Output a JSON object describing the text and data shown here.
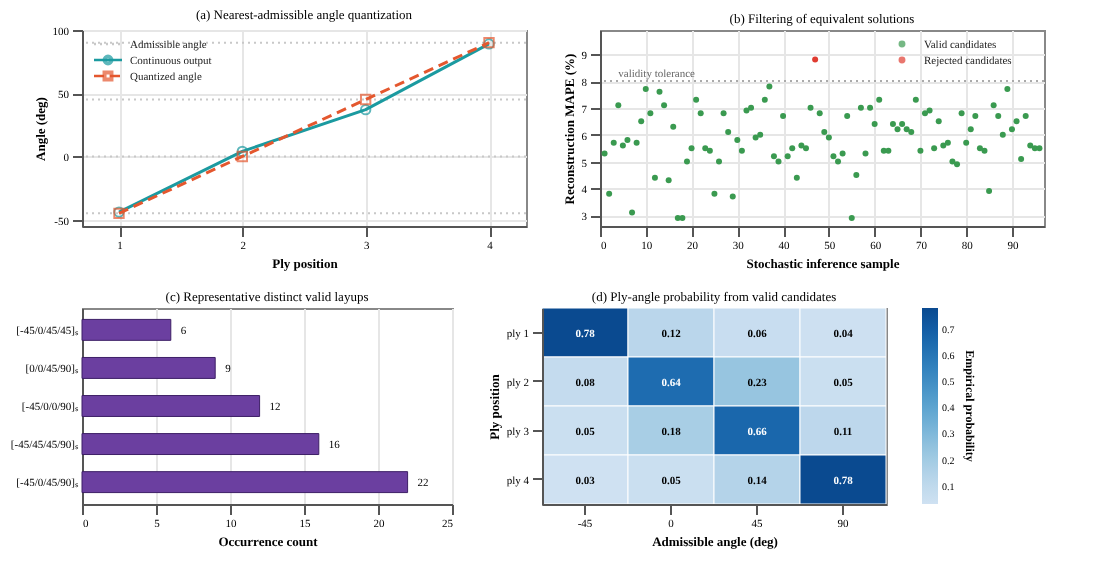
{
  "chart_data": [
    {
      "type": "line",
      "title": "(a) Nearest-admissible angle quantization",
      "xlabel": "Ply position",
      "ylabel": "Angle (deg)",
      "x": [
        1,
        2,
        3,
        4
      ],
      "xlim": [
        0.7,
        4.3
      ],
      "xticks": [
        1,
        2,
        3,
        4
      ],
      "ylim": [
        -55,
        100
      ],
      "yticks": [
        -50,
        0,
        50,
        100
      ],
      "grid": true,
      "legend": "top left",
      "ref_lines": [
        {
          "axis": "y",
          "value": -45,
          "label": "Admissible angle",
          "color": "#c8c8c8",
          "line_style": "dotted"
        },
        {
          "axis": "y",
          "value": 0,
          "label": null,
          "color": "#c8c8c8",
          "line_style": "dotted"
        },
        {
          "axis": "y",
          "value": 45,
          "label": null,
          "color": "#c8c8c8",
          "line_style": "dotted"
        },
        {
          "axis": "y",
          "value": 90,
          "label": null,
          "color": "#c8c8c8",
          "line_style": "dotted"
        }
      ],
      "series": [
        {
          "name": "Continuous output",
          "color": "#1b9aa0",
          "values": [
            -44,
            4,
            37,
            89
          ],
          "marker": "circle",
          "line_style": "solid"
        },
        {
          "name": "Quantized angle",
          "color": "#e4572e",
          "values": [
            -45,
            0,
            45,
            90
          ],
          "marker": "square",
          "line_style": "dashed"
        }
      ]
    },
    {
      "type": "scatter",
      "title": "(b) Filtering of equivalent solutions",
      "xlabel": "Stochastic inference sample",
      "ylabel": "Reconstruction MAPE (%)",
      "xlim": [
        0,
        97
      ],
      "xticks": [
        0,
        10,
        20,
        30,
        40,
        50,
        60,
        70,
        80,
        90
      ],
      "ylim": [
        2.6,
        9.9
      ],
      "yticks": [
        3,
        4,
        5,
        6,
        7,
        8,
        9
      ],
      "grid": true,
      "legend": "top right",
      "marker": "circle",
      "ref_lines": [
        {
          "axis": "y",
          "value": 8,
          "label": null,
          "color": "#aaaaaa",
          "line_style": "dotted"
        }
      ],
      "annotations": [
        {
          "text": "validity tolerance",
          "x": 4,
          "y": 8
        }
      ],
      "series": [
        {
          "name": "Valid candidates",
          "color": "#3a9a50",
          "x": [
            1,
            2,
            3,
            4,
            5,
            6,
            7,
            8,
            9,
            10,
            11,
            12,
            13,
            14,
            15,
            16,
            17,
            18,
            19,
            20,
            21,
            22,
            23,
            24,
            25,
            26,
            27,
            28,
            29,
            30,
            31,
            32,
            33,
            34,
            35,
            36,
            37,
            38,
            39,
            40,
            41,
            42,
            43,
            44,
            45,
            46,
            48,
            49,
            50,
            51,
            52,
            53,
            54,
            55,
            56,
            57,
            58,
            59,
            60,
            61,
            62,
            63,
            64,
            65,
            66,
            67,
            68,
            69,
            70,
            71,
            72,
            73,
            74,
            75,
            76,
            77,
            78,
            79,
            80,
            81,
            82,
            83,
            84,
            85,
            86,
            87,
            88,
            89,
            90,
            91,
            92,
            93,
            94,
            95,
            96
          ],
          "values": [
            5.3,
            3.8,
            5.7,
            7.1,
            5.6,
            5.8,
            3.1,
            5.7,
            6.5,
            7.7,
            6.8,
            4.4,
            7.6,
            7.1,
            4.3,
            6.3,
            2.9,
            2.9,
            5.0,
            5.5,
            7.3,
            6.8,
            5.5,
            5.4,
            3.8,
            5.0,
            6.8,
            6.1,
            3.7,
            5.8,
            5.4,
            6.9,
            7.0,
            5.9,
            6.0,
            7.3,
            7.8,
            5.2,
            5.0,
            6.7,
            5.2,
            5.5,
            4.4,
            5.6,
            5.5,
            7.0,
            6.8,
            6.1,
            5.9,
            5.2,
            5.0,
            5.3,
            6.7,
            2.9,
            4.5,
            7.0,
            5.3,
            7.0,
            6.4,
            7.3,
            5.4,
            5.4,
            6.4,
            6.2,
            6.4,
            6.2,
            6.1,
            7.3,
            5.4,
            6.8,
            6.9,
            5.5,
            6.5,
            5.6,
            5.7,
            5.0,
            4.9,
            6.8,
            5.7,
            6.2,
            6.7,
            5.5,
            5.4,
            3.9,
            7.1,
            6.7,
            6.0,
            7.7,
            6.2,
            6.5,
            5.1,
            6.7,
            5.6,
            5.5,
            5.5
          ]
        },
        {
          "name": "Rejected candidates",
          "color": "#e03c31",
          "x": [
            47
          ],
          "values": [
            8.8
          ]
        }
      ]
    },
    {
      "type": "bar",
      "orientation": "horizontal",
      "title": "(c) Representative distinct valid layups",
      "xlabel": "Occurrence count",
      "categories": [
        "[-45/0/45/45]ₛ",
        "[0/0/45/90]ₛ",
        "[-45/0/0/90]ₛ",
        "[-45/45/45/90]ₛ",
        "[-45/0/45/90]ₛ"
      ],
      "values": [
        6,
        9,
        12,
        16,
        22
      ],
      "color": "#6b3fa0",
      "data_labels": true,
      "xlim": [
        0,
        25
      ],
      "xticks": [
        0,
        5,
        10,
        15,
        20,
        25
      ],
      "grid": true
    },
    {
      "type": "heatmap",
      "title": "(d) Ply-angle probability from valid candidates",
      "xlabel": "Admissible angle (deg)",
      "ylabel": "Ply position",
      "clabel": "Empirical probability",
      "categories": [
        "-45",
        "0",
        "45",
        "90"
      ],
      "y_categories": [
        "ply 1",
        "ply 2",
        "ply 3",
        "ply 4"
      ],
      "cells": [
        [
          0.78,
          0.12,
          0.06,
          0.04
        ],
        [
          0.08,
          0.64,
          0.23,
          0.05
        ],
        [
          0.05,
          0.18,
          0.66,
          0.11
        ],
        [
          0.03,
          0.05,
          0.14,
          0.78
        ]
      ],
      "clim": [
        0.03,
        0.78
      ],
      "cticks": [
        0.1,
        0.2,
        0.3,
        0.4,
        0.5,
        0.6,
        0.7
      ],
      "data_labels": true
    }
  ]
}
